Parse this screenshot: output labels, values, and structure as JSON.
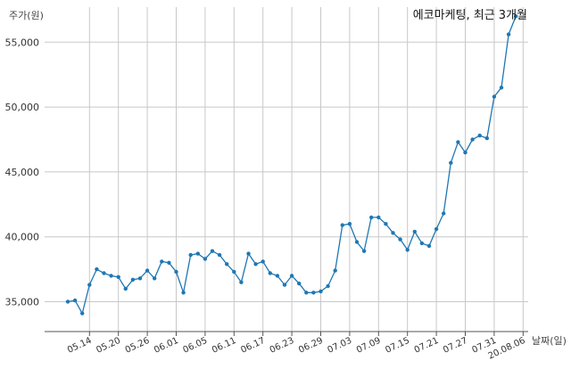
{
  "chart_data": {
    "type": "line",
    "title": "에코마케팅, 최근 3개월",
    "xlabel": "날짜(일)",
    "ylabel": "주가(원)",
    "ylim": [
      32700,
      57700
    ],
    "yticks": [
      "35,000",
      "40,000",
      "45,000",
      "50,000",
      "55,000"
    ],
    "ytick_values": [
      35000,
      40000,
      45000,
      50000,
      55000
    ],
    "xtick_labels": [
      "05.14",
      "05.20",
      "05.26",
      "06.01",
      "06.05",
      "06.11",
      "06.17",
      "06.23",
      "06.29",
      "07.03",
      "07.09",
      "07.15",
      "07.21",
      "07.27",
      "07.31",
      "20.08.06"
    ],
    "xtick_index": [
      3,
      7,
      11,
      15,
      19,
      23,
      27,
      31,
      35,
      39,
      43,
      47,
      51,
      55,
      59,
      63
    ],
    "grid": true,
    "color": "#1f77b4",
    "series": [
      {
        "values": [
          35000,
          35100,
          34100,
          36300,
          37500,
          37200,
          37000,
          36900,
          36000,
          36700,
          36800,
          37400,
          36800,
          38100,
          38000,
          37300,
          35700,
          38600,
          38700,
          38300,
          38900,
          38600,
          37900,
          37300,
          36500,
          38700,
          37900,
          38100,
          37200,
          37000,
          36300,
          37000,
          36400,
          35700,
          35700,
          35800,
          36200,
          37400,
          40900,
          41000,
          39600,
          38900,
          41500,
          41500,
          41000,
          40300,
          39800,
          39000,
          40400,
          39500,
          39300,
          40600,
          41800,
          45700,
          47300,
          46500,
          47500,
          47800,
          47600,
          50800,
          51500,
          55600,
          57000
        ]
      }
    ]
  }
}
